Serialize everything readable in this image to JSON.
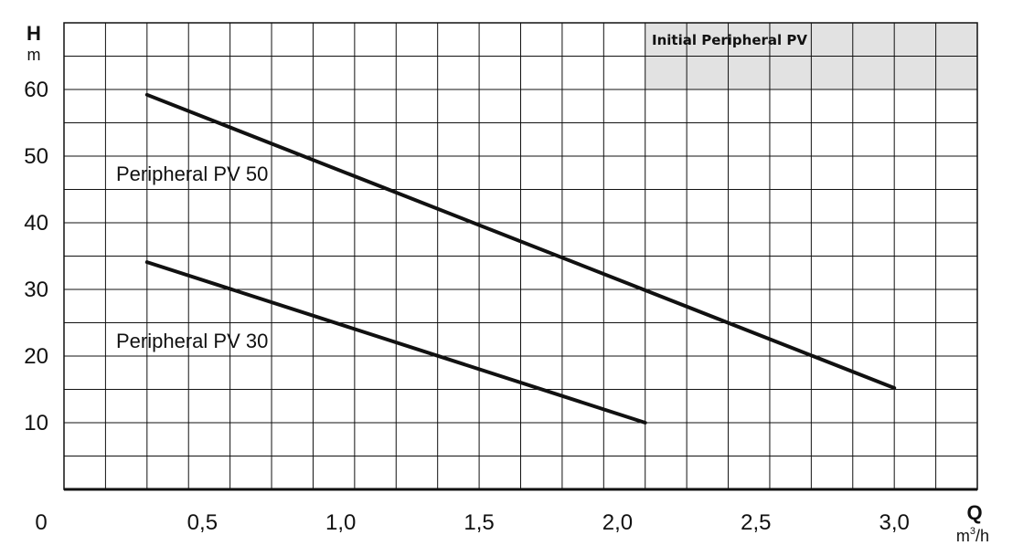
{
  "chart_data": {
    "type": "line",
    "title": "Initial Peripheral PV",
    "ylabel": "H",
    "yunit": "m",
    "xlabel": "Q",
    "xunit_base": "m",
    "xunit_exp": "3",
    "xunit_tail": "/h",
    "origin_label": "0",
    "xlim": [
      0,
      3.3
    ],
    "ylim": [
      0,
      70
    ],
    "x_ticks": [
      {
        "value": 0.5,
        "label": "0,5"
      },
      {
        "value": 1.0,
        "label": "1,0"
      },
      {
        "value": 1.5,
        "label": "1,5"
      },
      {
        "value": 2.0,
        "label": "2,0"
      },
      {
        "value": 2.5,
        "label": "2,5"
      },
      {
        "value": 3.0,
        "label": "3,0"
      }
    ],
    "y_ticks": [
      {
        "value": 10,
        "label": "10"
      },
      {
        "value": 20,
        "label": "20"
      },
      {
        "value": 30,
        "label": "30"
      },
      {
        "value": 40,
        "label": "40"
      },
      {
        "value": 50,
        "label": "50"
      },
      {
        "value": 60,
        "label": "60"
      }
    ],
    "grid": true,
    "series": [
      {
        "name": "Peripheral PV 50",
        "x": [
          0.3,
          3.0
        ],
        "y": [
          59.2,
          15.2
        ]
      },
      {
        "name": "Peripheral PV 30",
        "x": [
          0.3,
          2.1
        ],
        "y": [
          34.1,
          10.0
        ]
      }
    ],
    "colors": {
      "line": "#111111",
      "grid": "#111111",
      "title_box": "#e2e2e2"
    }
  }
}
